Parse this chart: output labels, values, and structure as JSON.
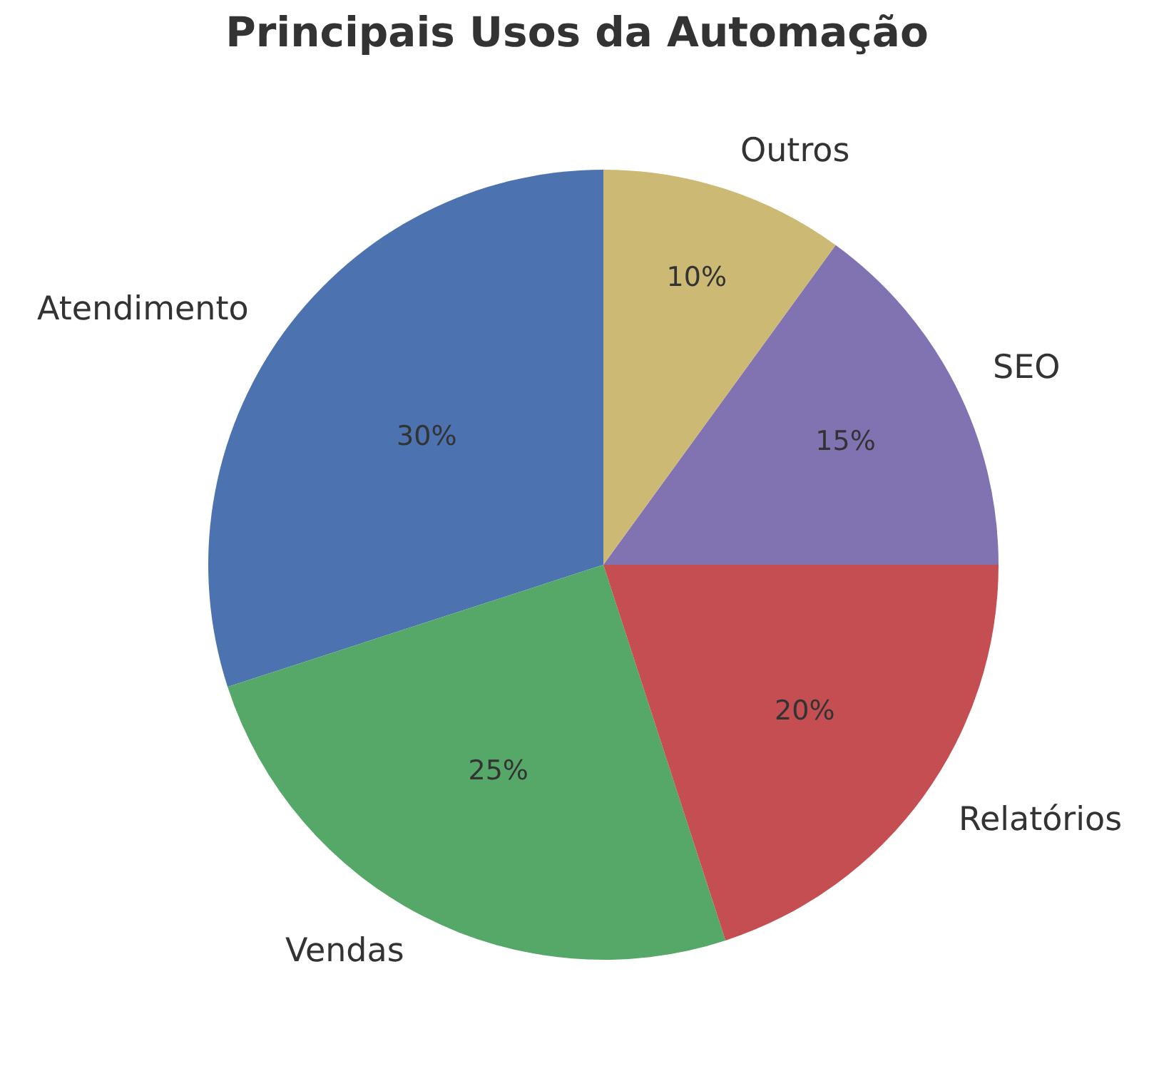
{
  "chart_data": {
    "type": "pie",
    "title": "Principais Usos da Automação",
    "categories": [
      "Atendimento",
      "Vendas",
      "Relatórios",
      "SEO",
      "Outros"
    ],
    "values": [
      30,
      25,
      20,
      15,
      10
    ],
    "value_labels": [
      "30%",
      "25%",
      "20%",
      "15%",
      "10%"
    ],
    "colors": [
      "#4c72b0",
      "#55a868",
      "#c44e52",
      "#8172b2",
      "#ccb974"
    ],
    "legend": false
  }
}
